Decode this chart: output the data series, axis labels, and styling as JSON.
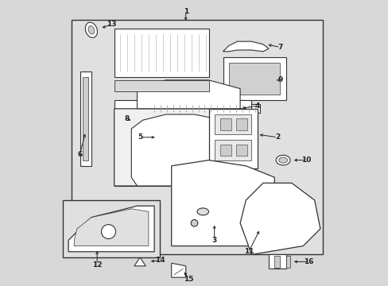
{
  "background_color": "#d8d8d8",
  "line_color": "#333333",
  "callout_color": "#222222",
  "figsize": [
    4.89,
    3.6
  ],
  "dpi": 100
}
